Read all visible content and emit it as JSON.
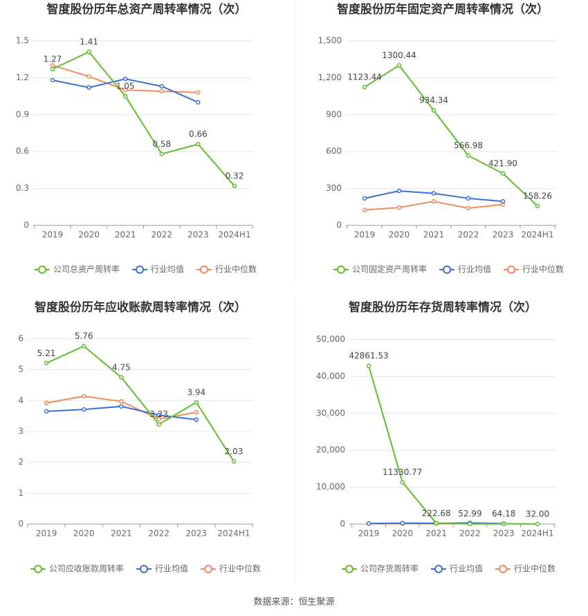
{
  "chart_data": [
    {
      "type": "line",
      "title": "智度股份历年总资产周转率情况（次）",
      "categories": [
        "2019",
        "2020",
        "2021",
        "2022",
        "2023",
        "2024H1"
      ],
      "series": [
        {
          "name": "公司总资产周转率",
          "color": "#5cbf2a",
          "values": [
            1.27,
            1.41,
            1.05,
            0.58,
            0.66,
            0.32
          ]
        },
        {
          "name": "行业均值",
          "color": "#3a6fd8",
          "values": [
            1.18,
            1.12,
            1.19,
            1.13,
            1.0,
            null
          ]
        },
        {
          "name": "行业中位数",
          "color": "#f08a5d",
          "values": [
            1.3,
            1.21,
            1.1,
            1.09,
            1.08,
            null
          ]
        }
      ],
      "ylim": [
        0,
        1.5
      ],
      "yticks": [
        0,
        0.3,
        0.6,
        0.9,
        1.2,
        1.5
      ],
      "grid": true
    },
    {
      "type": "line",
      "title": "智度股份历年固定资产周转率情况（次）",
      "categories": [
        "2019",
        "2020",
        "2021",
        "2022",
        "2023",
        "2024H1"
      ],
      "series": [
        {
          "name": "公司固定资产周转率",
          "color": "#5cbf2a",
          "values": [
            1123.44,
            1300.44,
            934.34,
            566.98,
            421.9,
            158.26
          ],
          "value_labels": [
            "1123.44",
            "1300.44",
            "934.34",
            "566.98",
            "421.90",
            "158.26"
          ]
        },
        {
          "name": "行业均值",
          "color": "#3a6fd8",
          "values": [
            220,
            280,
            260,
            220,
            195,
            null
          ]
        },
        {
          "name": "行业中位数",
          "color": "#f08a5d",
          "values": [
            125,
            145,
            195,
            140,
            170,
            null
          ]
        }
      ],
      "ylim": [
        0,
        1500
      ],
      "yticks": [
        0,
        300,
        600,
        900,
        {
          "value": 1200,
          "label": "1,200"
        },
        {
          "value": 1500,
          "label": "1,500"
        }
      ],
      "grid": true
    },
    {
      "type": "line",
      "title": "智度股份历年应收账款周转率情况（次）",
      "categories": [
        "2019",
        "2020",
        "2021",
        "2022",
        "2023",
        "2024H1"
      ],
      "series": [
        {
          "name": "公司应收账款周转率",
          "color": "#5cbf2a",
          "values": [
            5.21,
            5.76,
            4.75,
            3.23,
            3.94,
            2.03
          ]
        },
        {
          "name": "行业均值",
          "color": "#3a6fd8",
          "values": [
            3.65,
            3.71,
            3.81,
            3.53,
            3.38,
            null
          ]
        },
        {
          "name": "行业中位数",
          "color": "#f08a5d",
          "values": [
            3.92,
            4.14,
            3.97,
            3.4,
            3.62,
            null
          ]
        }
      ],
      "ylim": [
        0,
        6
      ],
      "yticks": [
        0,
        1,
        2,
        3,
        4,
        5,
        6
      ],
      "grid": true
    },
    {
      "type": "line",
      "title": "智度股份历年存货周转率情况（次）",
      "categories": [
        "2019",
        "2020",
        "2021",
        "2022",
        "2023",
        "2024H1"
      ],
      "series": [
        {
          "name": "公司存货周转率",
          "color": "#5cbf2a",
          "values": [
            42861.53,
            11330.77,
            222.68,
            52.99,
            64.18,
            32.0
          ],
          "value_labels": [
            "42861.53",
            "11330.77",
            "222.68",
            "52.99",
            "64.18",
            "32.00"
          ]
        },
        {
          "name": "行业均值",
          "color": "#3a6fd8",
          "values": [
            150,
            250,
            200,
            300,
            150,
            null
          ]
        },
        {
          "name": "行业中位数",
          "color": "#f08a5d",
          "values": [
            100,
            100,
            150,
            100,
            100,
            null
          ]
        }
      ],
      "ylim": [
        0,
        50000
      ],
      "yticks": [
        0,
        {
          "value": 10000,
          "label": "10,000"
        },
        {
          "value": 20000,
          "label": "20,000"
        },
        {
          "value": 30000,
          "label": "30,000"
        },
        {
          "value": 40000,
          "label": "40,000"
        },
        {
          "value": 50000,
          "label": "50,000"
        }
      ],
      "grid": true
    }
  ],
  "source": "数据来源：恒生聚源"
}
